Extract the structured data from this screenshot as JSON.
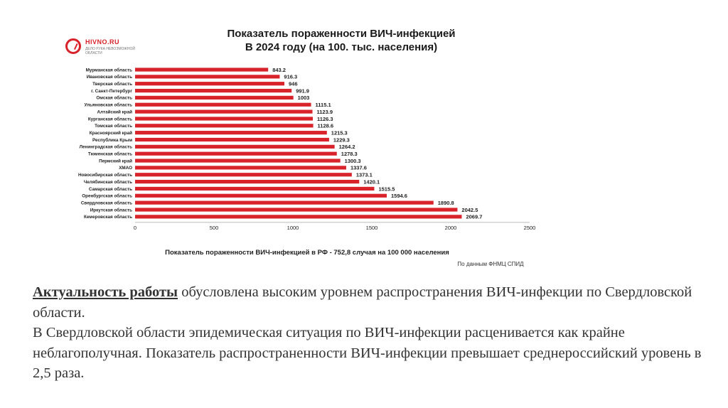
{
  "logo": {
    "brand": "HIVNO.RU",
    "subtitle": "ДЕЛО РУКА НЕВОЗМОЖНОЙ ОБЛАСТИ"
  },
  "chart_data": {
    "type": "bar",
    "orientation": "horizontal",
    "title_line1": "Показатель пораженности ВИЧ-инфекцией",
    "title_line2": "В 2024  году  (на 100. тыс. населения)",
    "xlabel": "Показатель пораженности ВИЧ-инфекцией в РФ - 752,8 случая на 100 000 населения",
    "source": "По данным ФНМЦ СПИД",
    "xlim": [
      0,
      2500
    ],
    "xticks": [
      "0",
      "500",
      "1000",
      "1500",
      "2000",
      "2500"
    ],
    "bar_color": "#d8232a",
    "categories": [
      "Мурманская область",
      "Ивановская область",
      "Тверская область",
      "г. Санкт-Петербург",
      "Омская область",
      "Ульяновская область",
      "Алтайский край",
      "Курганская область",
      "Томская область",
      "Красноярский край",
      "Республика Крым",
      "Ленинградская область",
      "Тюменская область",
      "Пермский край",
      "ХМАО",
      "Новосибирская область",
      "Челябинская область",
      "Самарская область",
      "Оренбургская область",
      "Свердловская область",
      "Иркутская область",
      "Кемеровская область"
    ],
    "values": [
      843.2,
      916.3,
      946,
      991.9,
      1003,
      1115.1,
      1123.9,
      1126.3,
      1128.6,
      1215.3,
      1229.3,
      1264.2,
      1278.3,
      1300.3,
      1337.6,
      1373.1,
      1420.1,
      1515.5,
      1594.6,
      1890.8,
      2042.5,
      2069.7
    ],
    "value_labels": [
      "843.2",
      "916.3",
      "946",
      "991.9",
      "1003",
      "1115.1",
      "1123.9",
      "1126.3",
      "1128.6",
      "1215.3",
      "1229.3",
      "1264.2",
      "1278.3",
      "1300.3",
      "1337.6",
      "1373.1",
      "1420.1",
      "1515.5",
      "1594.6",
      "1890.8",
      "2042.5",
      "2069.7"
    ],
    "grid": false
  },
  "text": {
    "lead": "Актуальность работы",
    "line1_rest": " обусловлена высоким уровнем распространения ВИЧ-инфекции по Свердловской области.",
    "paragraph2": "В Свердловской области эпидемическая ситуация по ВИЧ-инфекции расценивается как крайне неблагополучная. Показатель распространенности ВИЧ-инфекции превышает среднероссийский уровень в 2,5 раза."
  }
}
